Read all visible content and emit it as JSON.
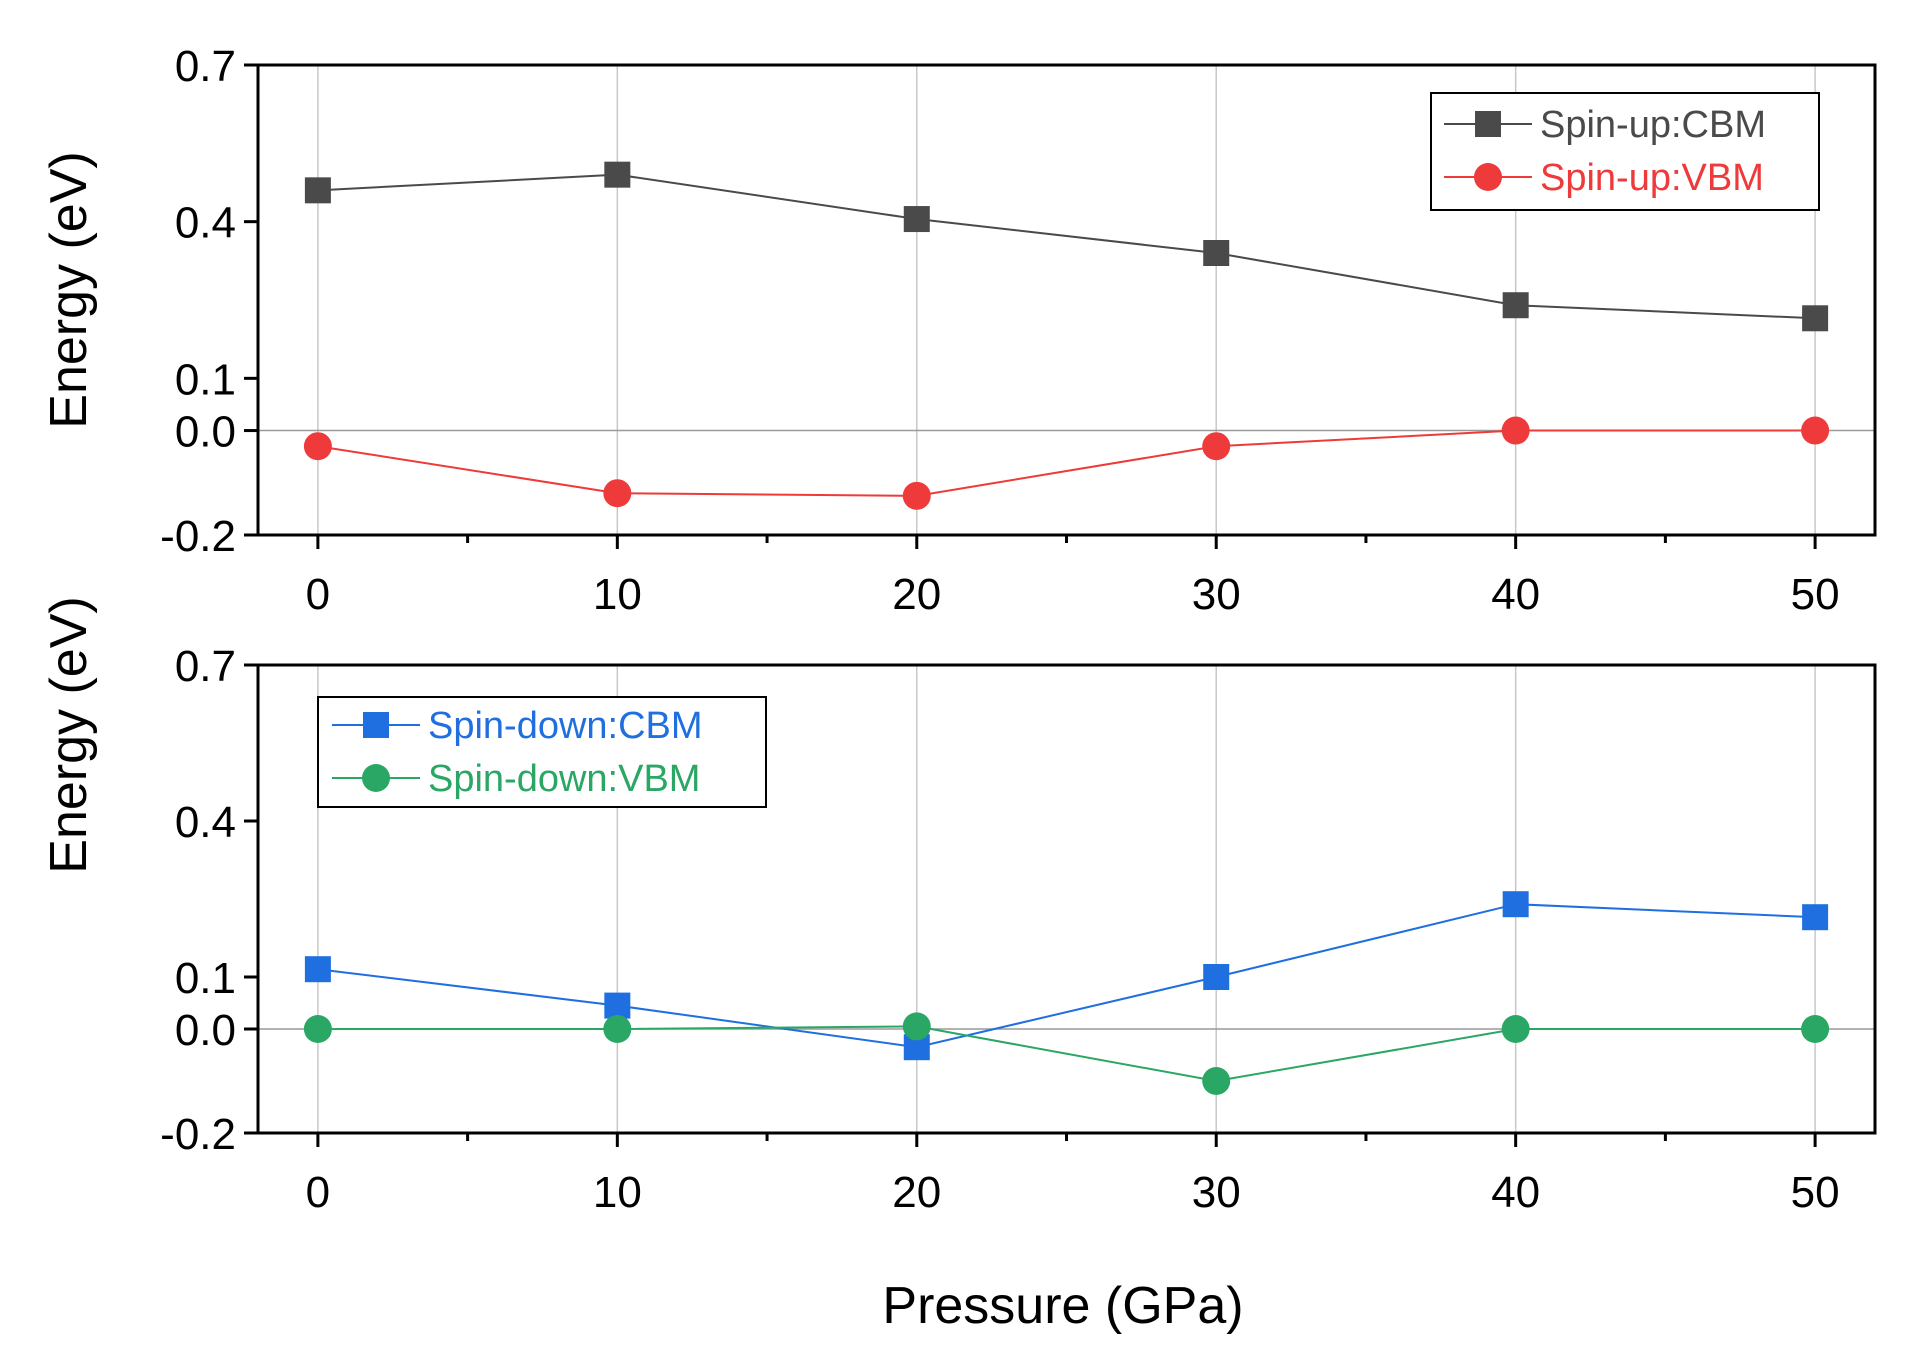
{
  "chart_data": [
    {
      "type": "line",
      "panel": "top",
      "x": [
        0,
        10,
        20,
        30,
        40,
        50
      ],
      "xlim": [
        -2,
        52
      ],
      "ylim": [
        -0.2,
        0.7
      ],
      "xticks": [
        0,
        10,
        20,
        30,
        40,
        50
      ],
      "yticks": [
        -0.2,
        0.0,
        0.1,
        0.4,
        0.7
      ],
      "ytick_labels": [
        "-0.2",
        "0.0",
        "0.1",
        "0.4",
        "0.7"
      ],
      "xtick_labels": [
        "0",
        "10",
        "20",
        "30",
        "40",
        "50"
      ],
      "ylabel": "Energy (eV)",
      "xlabel": "",
      "grid": true,
      "zero_line": true,
      "legend_position": "top-right",
      "series": [
        {
          "name": "Spin-up:CBM",
          "marker": "square",
          "color": "#4a4a4a",
          "values": [
            0.46,
            0.49,
            0.405,
            0.34,
            0.24,
            0.215
          ]
        },
        {
          "name": "Spin-up:VBM",
          "marker": "circle",
          "color": "#ee3a3a",
          "values": [
            -0.03,
            -0.12,
            -0.125,
            -0.03,
            0.0,
            0.0
          ]
        }
      ]
    },
    {
      "type": "line",
      "panel": "bottom",
      "x": [
        0,
        10,
        20,
        30,
        40,
        50
      ],
      "xlim": [
        -2,
        52
      ],
      "ylim": [
        -0.2,
        0.7
      ],
      "xticks": [
        0,
        10,
        20,
        30,
        40,
        50
      ],
      "yticks": [
        -0.2,
        0.0,
        0.1,
        0.4,
        0.7
      ],
      "ytick_labels": [
        "-0.2",
        "0.0",
        "0.1",
        "0.4",
        "0.7"
      ],
      "xtick_labels": [
        "0",
        "10",
        "20",
        "30",
        "40",
        "50"
      ],
      "ylabel": "Energy (eV)",
      "xlabel": "Pressure (GPa)",
      "grid": true,
      "zero_line": true,
      "legend_position": "top-left",
      "series": [
        {
          "name": "Spin-down:CBM",
          "marker": "square",
          "color": "#1f6fe0",
          "values": [
            0.115,
            0.045,
            -0.035,
            0.1,
            0.24,
            0.215
          ]
        },
        {
          "name": "Spin-down:VBM",
          "marker": "circle",
          "color": "#2aa764",
          "values": [
            0.0,
            0.0,
            0.005,
            -0.1,
            0.0,
            0.0
          ]
        }
      ]
    }
  ]
}
